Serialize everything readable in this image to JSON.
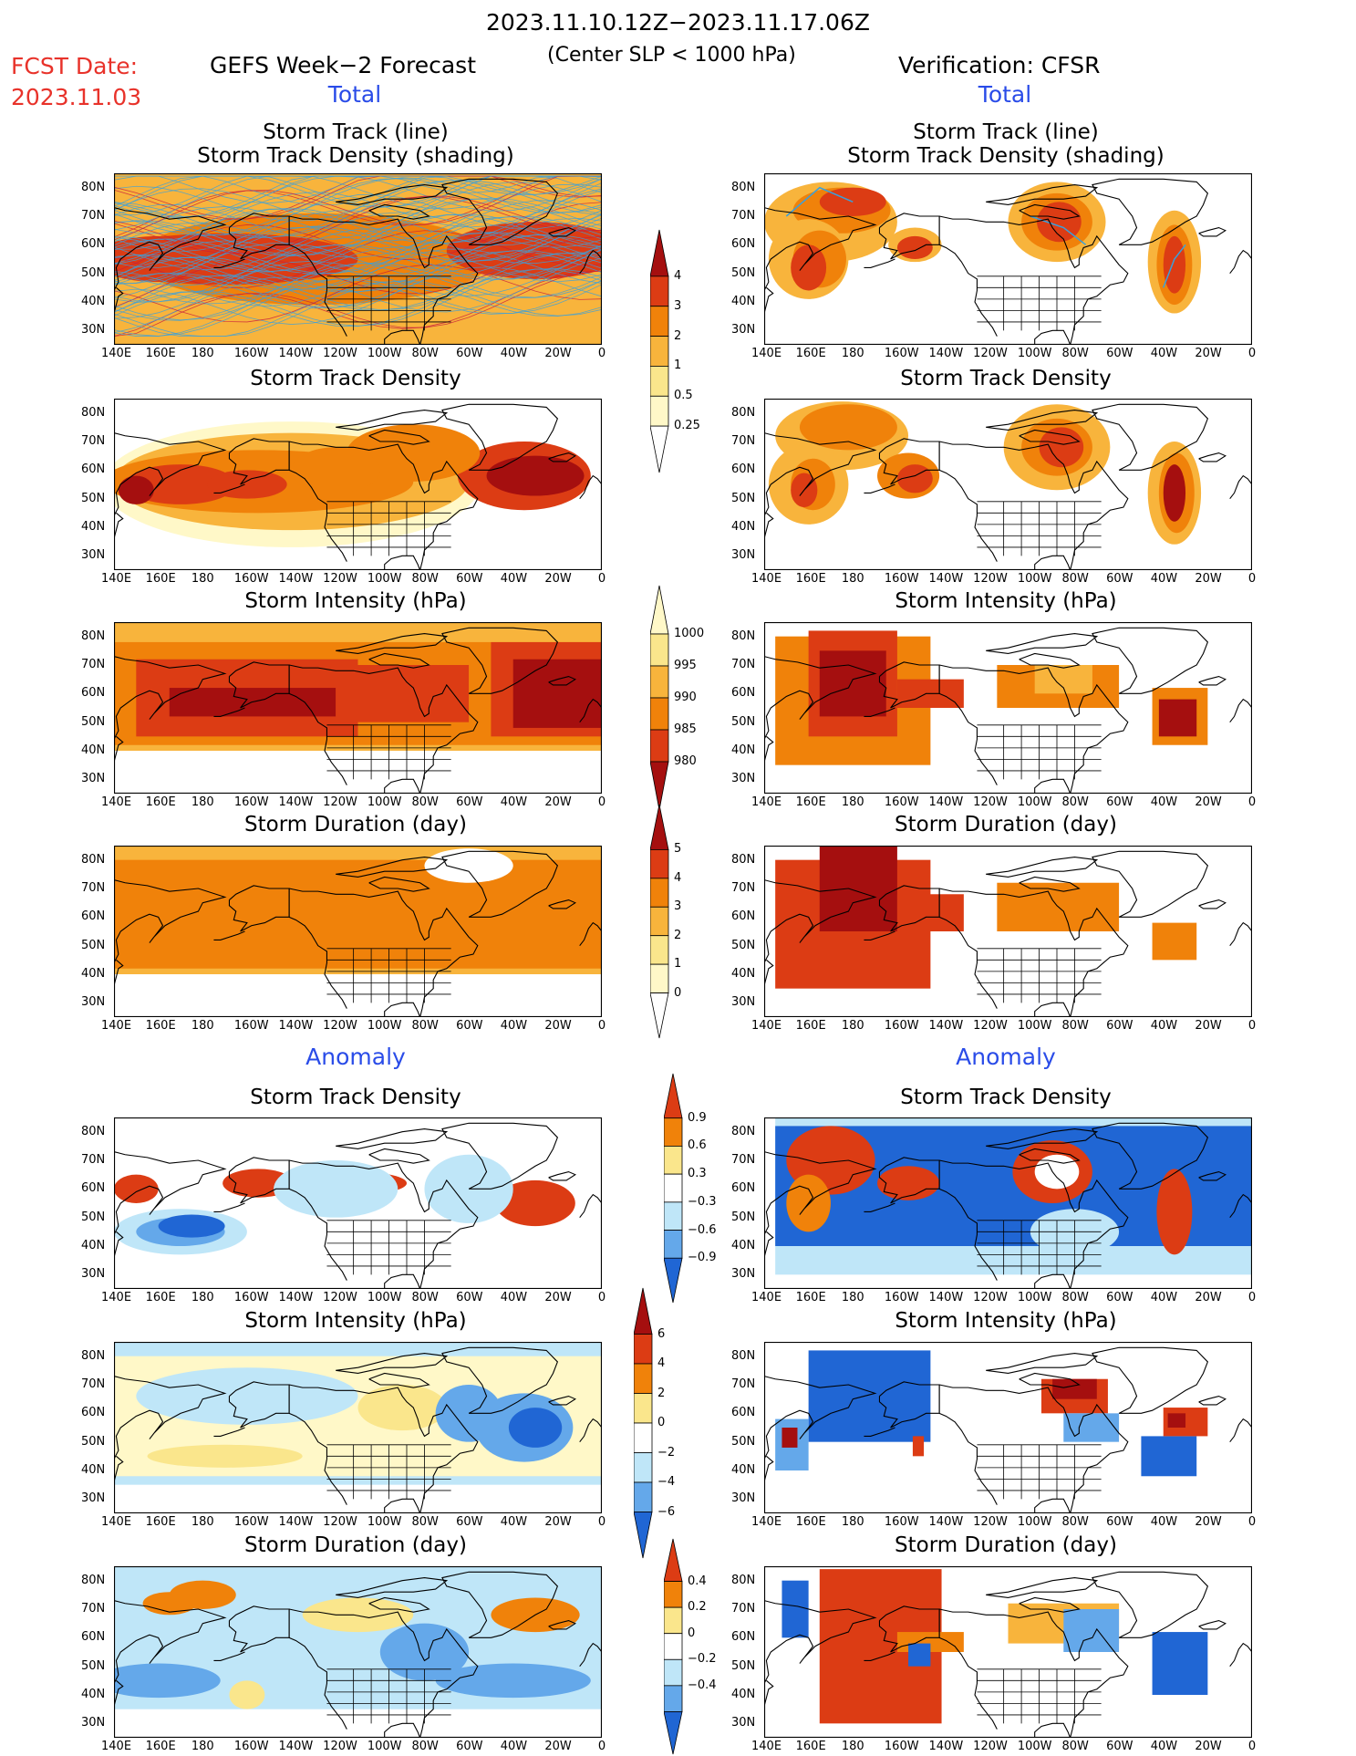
{
  "header": {
    "date_range": "2023.11.10.12Z−2023.11.17.06Z",
    "condition": "(Center SLP < 1000 hPa)",
    "fcst_label": "FCST Date:",
    "fcst_date": "2023.11.03",
    "left_title": "GEFS Week−2 Forecast",
    "right_title": "Verification: CFSR"
  },
  "sections": {
    "total": "Total",
    "anomaly": "Anomaly"
  },
  "panel_titles": {
    "track_line": "Storm Track (line)",
    "track_shading": "Storm Track Density (shading)",
    "density": "Storm Track Density",
    "intensity": "Storm Intensity (hPa)",
    "duration": "Storm Duration (day)"
  },
  "axes": {
    "lon_labels": [
      "140E",
      "160E",
      "180",
      "160W",
      "140W",
      "120W",
      "100W",
      "80W",
      "60W",
      "40W",
      "20W",
      "0"
    ],
    "lat_labels": [
      "80N",
      "70N",
      "60N",
      "50N",
      "40N",
      "30N"
    ]
  },
  "colorbars": {
    "total_density": {
      "labels": [
        "4",
        "3",
        "2",
        "1",
        "0.5",
        "0.25"
      ]
    },
    "total_intensity": {
      "labels": [
        "1000",
        "995",
        "990",
        "985",
        "980"
      ]
    },
    "total_duration": {
      "labels": [
        "5",
        "4",
        "3",
        "2",
        "1",
        "0"
      ]
    },
    "anom_density": {
      "labels": [
        "0.9",
        "0.6",
        "0.3",
        "−0.3",
        "−0.6",
        "−0.9"
      ]
    },
    "anom_intensity": {
      "labels": [
        "6",
        "4",
        "2",
        "0",
        "−2",
        "−4",
        "−6"
      ]
    },
    "anom_duration": {
      "labels": [
        "0.4",
        "0.2",
        "0",
        "−0.2",
        "−0.4"
      ]
    }
  },
  "colors": {
    "title_red": "#e8322a",
    "section_blue": "#2a4ce8",
    "dark_red": "#a50f0f",
    "red": "#dc3c14",
    "orange": "#f0820a",
    "light_orange": "#f8b43c",
    "yellow": "#fae68c",
    "pale_yellow": "#fff8c8",
    "light_blue": "#bfe6f8",
    "mid_blue": "#64a8ea",
    "blue": "#2066d4",
    "track_blue": "#3aa0dc",
    "track_red": "#c81e3c"
  }
}
